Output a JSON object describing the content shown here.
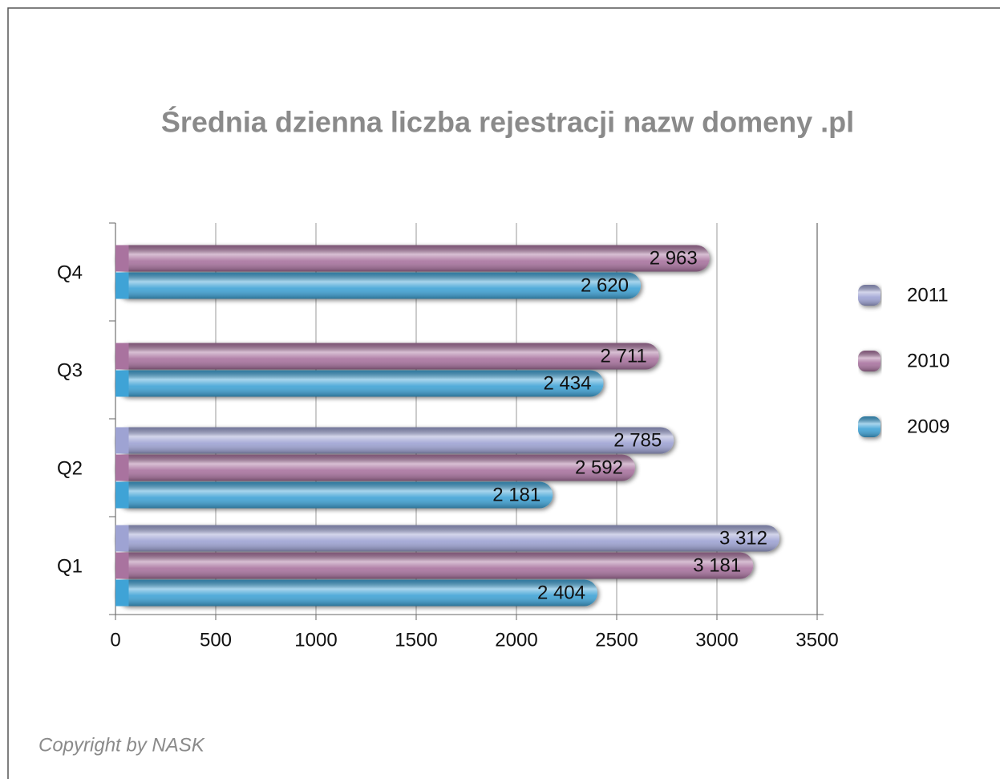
{
  "chart_data": {
    "type": "bar",
    "orientation": "horizontal",
    "title": "Średnia dzienna liczba rejestracji nazw domeny .pl",
    "categories": [
      "Q1",
      "Q2",
      "Q3",
      "Q4"
    ],
    "series": [
      {
        "name": "2011",
        "color": "#9ea3d3",
        "values": [
          3312,
          2785,
          null,
          null
        ],
        "value_labels": [
          "3 312",
          "2 785",
          null,
          null
        ]
      },
      {
        "name": "2010",
        "color": "#a9739f",
        "values": [
          3181,
          2592,
          2711,
          2963
        ],
        "value_labels": [
          "3 181",
          "2 592",
          "2 711",
          "2 963"
        ]
      },
      {
        "name": "2009",
        "color": "#3fa3d6",
        "values": [
          2404,
          2181,
          2434,
          2620
        ],
        "value_labels": [
          "2 404",
          "2 181",
          "2 434",
          "2 620"
        ]
      }
    ],
    "xlim": [
      0,
      3500
    ],
    "xticks": [
      0,
      500,
      1000,
      1500,
      2000,
      2500,
      3000,
      3500
    ],
    "grid": true,
    "legend": "right",
    "footnote": "Copyright by NASK"
  }
}
